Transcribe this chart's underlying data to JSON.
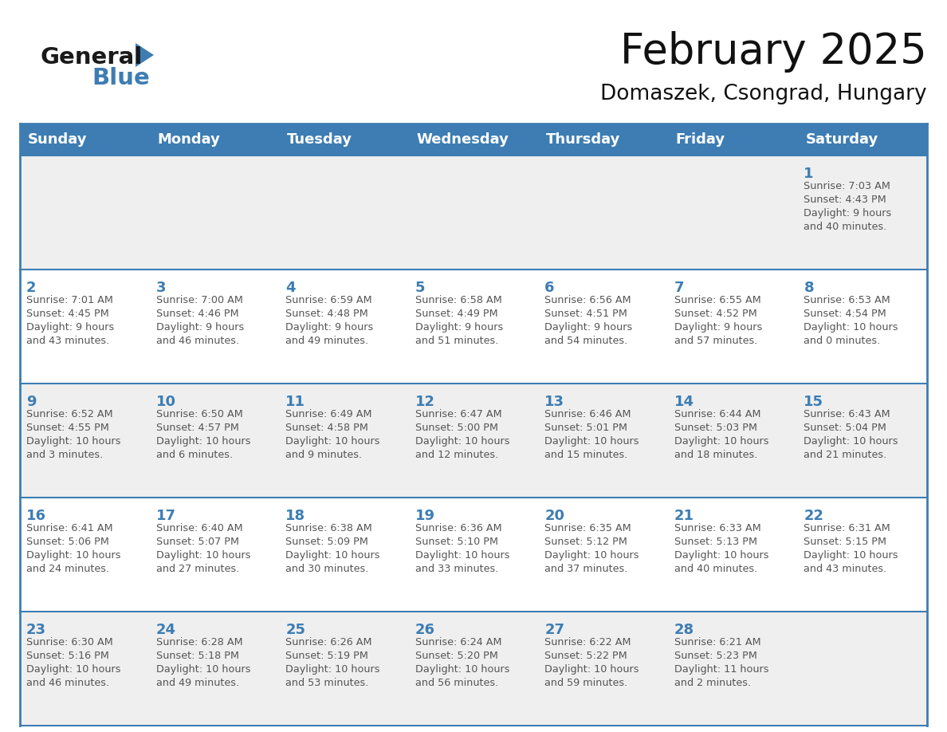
{
  "title": "February 2025",
  "subtitle": "Domaszek, Csongrad, Hungary",
  "header_color": "#3d7db3",
  "header_text_color": "#ffffff",
  "cell_bg_light": "#efefef",
  "cell_bg_white": "#ffffff",
  "day_num_color": "#3d7db3",
  "text_color": "#555555",
  "border_color": "#3d7db3",
  "days_of_week": [
    "Sunday",
    "Monday",
    "Tuesday",
    "Wednesday",
    "Thursday",
    "Friday",
    "Saturday"
  ],
  "weeks": [
    [
      {
        "num": "",
        "sunrise": "",
        "sunset": "",
        "daylight": ""
      },
      {
        "num": "",
        "sunrise": "",
        "sunset": "",
        "daylight": ""
      },
      {
        "num": "",
        "sunrise": "",
        "sunset": "",
        "daylight": ""
      },
      {
        "num": "",
        "sunrise": "",
        "sunset": "",
        "daylight": ""
      },
      {
        "num": "",
        "sunrise": "",
        "sunset": "",
        "daylight": ""
      },
      {
        "num": "",
        "sunrise": "",
        "sunset": "",
        "daylight": ""
      },
      {
        "num": "1",
        "sunrise": "Sunrise: 7:03 AM",
        "sunset": "Sunset: 4:43 PM",
        "daylight": "Daylight: 9 hours\nand 40 minutes."
      }
    ],
    [
      {
        "num": "2",
        "sunrise": "Sunrise: 7:01 AM",
        "sunset": "Sunset: 4:45 PM",
        "daylight": "Daylight: 9 hours\nand 43 minutes."
      },
      {
        "num": "3",
        "sunrise": "Sunrise: 7:00 AM",
        "sunset": "Sunset: 4:46 PM",
        "daylight": "Daylight: 9 hours\nand 46 minutes."
      },
      {
        "num": "4",
        "sunrise": "Sunrise: 6:59 AM",
        "sunset": "Sunset: 4:48 PM",
        "daylight": "Daylight: 9 hours\nand 49 minutes."
      },
      {
        "num": "5",
        "sunrise": "Sunrise: 6:58 AM",
        "sunset": "Sunset: 4:49 PM",
        "daylight": "Daylight: 9 hours\nand 51 minutes."
      },
      {
        "num": "6",
        "sunrise": "Sunrise: 6:56 AM",
        "sunset": "Sunset: 4:51 PM",
        "daylight": "Daylight: 9 hours\nand 54 minutes."
      },
      {
        "num": "7",
        "sunrise": "Sunrise: 6:55 AM",
        "sunset": "Sunset: 4:52 PM",
        "daylight": "Daylight: 9 hours\nand 57 minutes."
      },
      {
        "num": "8",
        "sunrise": "Sunrise: 6:53 AM",
        "sunset": "Sunset: 4:54 PM",
        "daylight": "Daylight: 10 hours\nand 0 minutes."
      }
    ],
    [
      {
        "num": "9",
        "sunrise": "Sunrise: 6:52 AM",
        "sunset": "Sunset: 4:55 PM",
        "daylight": "Daylight: 10 hours\nand 3 minutes."
      },
      {
        "num": "10",
        "sunrise": "Sunrise: 6:50 AM",
        "sunset": "Sunset: 4:57 PM",
        "daylight": "Daylight: 10 hours\nand 6 minutes."
      },
      {
        "num": "11",
        "sunrise": "Sunrise: 6:49 AM",
        "sunset": "Sunset: 4:58 PM",
        "daylight": "Daylight: 10 hours\nand 9 minutes."
      },
      {
        "num": "12",
        "sunrise": "Sunrise: 6:47 AM",
        "sunset": "Sunset: 5:00 PM",
        "daylight": "Daylight: 10 hours\nand 12 minutes."
      },
      {
        "num": "13",
        "sunrise": "Sunrise: 6:46 AM",
        "sunset": "Sunset: 5:01 PM",
        "daylight": "Daylight: 10 hours\nand 15 minutes."
      },
      {
        "num": "14",
        "sunrise": "Sunrise: 6:44 AM",
        "sunset": "Sunset: 5:03 PM",
        "daylight": "Daylight: 10 hours\nand 18 minutes."
      },
      {
        "num": "15",
        "sunrise": "Sunrise: 6:43 AM",
        "sunset": "Sunset: 5:04 PM",
        "daylight": "Daylight: 10 hours\nand 21 minutes."
      }
    ],
    [
      {
        "num": "16",
        "sunrise": "Sunrise: 6:41 AM",
        "sunset": "Sunset: 5:06 PM",
        "daylight": "Daylight: 10 hours\nand 24 minutes."
      },
      {
        "num": "17",
        "sunrise": "Sunrise: 6:40 AM",
        "sunset": "Sunset: 5:07 PM",
        "daylight": "Daylight: 10 hours\nand 27 minutes."
      },
      {
        "num": "18",
        "sunrise": "Sunrise: 6:38 AM",
        "sunset": "Sunset: 5:09 PM",
        "daylight": "Daylight: 10 hours\nand 30 minutes."
      },
      {
        "num": "19",
        "sunrise": "Sunrise: 6:36 AM",
        "sunset": "Sunset: 5:10 PM",
        "daylight": "Daylight: 10 hours\nand 33 minutes."
      },
      {
        "num": "20",
        "sunrise": "Sunrise: 6:35 AM",
        "sunset": "Sunset: 5:12 PM",
        "daylight": "Daylight: 10 hours\nand 37 minutes."
      },
      {
        "num": "21",
        "sunrise": "Sunrise: 6:33 AM",
        "sunset": "Sunset: 5:13 PM",
        "daylight": "Daylight: 10 hours\nand 40 minutes."
      },
      {
        "num": "22",
        "sunrise": "Sunrise: 6:31 AM",
        "sunset": "Sunset: 5:15 PM",
        "daylight": "Daylight: 10 hours\nand 43 minutes."
      }
    ],
    [
      {
        "num": "23",
        "sunrise": "Sunrise: 6:30 AM",
        "sunset": "Sunset: 5:16 PM",
        "daylight": "Daylight: 10 hours\nand 46 minutes."
      },
      {
        "num": "24",
        "sunrise": "Sunrise: 6:28 AM",
        "sunset": "Sunset: 5:18 PM",
        "daylight": "Daylight: 10 hours\nand 49 minutes."
      },
      {
        "num": "25",
        "sunrise": "Sunrise: 6:26 AM",
        "sunset": "Sunset: 5:19 PM",
        "daylight": "Daylight: 10 hours\nand 53 minutes."
      },
      {
        "num": "26",
        "sunrise": "Sunrise: 6:24 AM",
        "sunset": "Sunset: 5:20 PM",
        "daylight": "Daylight: 10 hours\nand 56 minutes."
      },
      {
        "num": "27",
        "sunrise": "Sunrise: 6:22 AM",
        "sunset": "Sunset: 5:22 PM",
        "daylight": "Daylight: 10 hours\nand 59 minutes."
      },
      {
        "num": "28",
        "sunrise": "Sunrise: 6:21 AM",
        "sunset": "Sunset: 5:23 PM",
        "daylight": "Daylight: 11 hours\nand 2 minutes."
      },
      {
        "num": "",
        "sunrise": "",
        "sunset": "",
        "daylight": ""
      }
    ]
  ],
  "logo_general_color": "#1a1a1a",
  "logo_blue_color": "#3d7db3",
  "figsize": [
    11.88,
    9.18
  ],
  "dpi": 100
}
